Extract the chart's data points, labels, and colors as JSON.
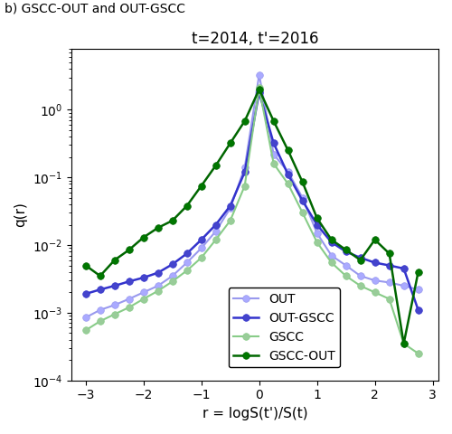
{
  "title": "t=2014, t'=2016",
  "suptitle": "b) GSCC-OUT and OUT-GSCC",
  "xlabel": "r = logS(t')/S(t)",
  "ylabel": "q(r)",
  "series": {
    "OUT": {
      "color": "#9999ee",
      "marker_color": "#aaaaff",
      "linewidth": 1.5,
      "x": [
        -3.0,
        -2.75,
        -2.5,
        -2.25,
        -2.0,
        -1.75,
        -1.5,
        -1.25,
        -1.0,
        -0.75,
        -0.5,
        -0.25,
        0.0,
        0.25,
        0.5,
        0.75,
        1.0,
        1.25,
        1.5,
        1.75,
        2.0,
        2.25,
        2.5,
        2.75
      ],
      "y": [
        0.00085,
        0.0011,
        0.0013,
        0.0016,
        0.002,
        0.0025,
        0.0035,
        0.0055,
        0.009,
        0.016,
        0.035,
        0.14,
        3.3,
        0.22,
        0.12,
        0.05,
        0.015,
        0.007,
        0.005,
        0.0035,
        0.003,
        0.0028,
        0.0025,
        0.0022
      ]
    },
    "OUT-GSCC": {
      "color": "#3333cc",
      "marker_color": "#4444cc",
      "linewidth": 1.8,
      "x": [
        -3.0,
        -2.75,
        -2.5,
        -2.25,
        -2.0,
        -1.75,
        -1.5,
        -1.25,
        -1.0,
        -0.75,
        -0.5,
        -0.25,
        0.0,
        0.25,
        0.5,
        0.75,
        1.0,
        1.25,
        1.5,
        1.75,
        2.0,
        2.25,
        2.5,
        2.75
      ],
      "y": [
        0.0019,
        0.0022,
        0.0025,
        0.0029,
        0.0033,
        0.0039,
        0.0052,
        0.0075,
        0.012,
        0.02,
        0.038,
        0.12,
        1.8,
        0.32,
        0.11,
        0.045,
        0.02,
        0.011,
        0.008,
        0.0065,
        0.0055,
        0.005,
        0.0045,
        0.0011
      ]
    },
    "GSCC": {
      "color": "#88cc88",
      "marker_color": "#99cc99",
      "linewidth": 1.5,
      "x": [
        -3.0,
        -2.75,
        -2.5,
        -2.25,
        -2.0,
        -1.75,
        -1.5,
        -1.25,
        -1.0,
        -0.75,
        -0.5,
        -0.25,
        0.0,
        0.25,
        0.5,
        0.75,
        1.0,
        1.25,
        1.5,
        1.75,
        2.0,
        2.25,
        2.5,
        2.75
      ],
      "y": [
        0.00055,
        0.00075,
        0.00095,
        0.0012,
        0.0016,
        0.0021,
        0.0029,
        0.0042,
        0.0065,
        0.012,
        0.023,
        0.075,
        2.1,
        0.16,
        0.08,
        0.03,
        0.011,
        0.0055,
        0.0035,
        0.0025,
        0.002,
        0.0016,
        0.00035,
        0.00025
      ]
    },
    "GSCC-OUT": {
      "color": "#006600",
      "marker_color": "#007700",
      "linewidth": 1.8,
      "x": [
        -3.0,
        -2.75,
        -2.5,
        -2.25,
        -2.0,
        -1.75,
        -1.5,
        -1.25,
        -1.0,
        -0.75,
        -0.5,
        -0.25,
        0.0,
        0.25,
        0.5,
        0.75,
        1.0,
        1.25,
        1.5,
        1.75,
        2.0,
        2.25,
        2.5,
        2.75
      ],
      "y": [
        0.005,
        0.0035,
        0.006,
        0.0085,
        0.013,
        0.018,
        0.023,
        0.038,
        0.075,
        0.15,
        0.32,
        0.68,
        2.0,
        0.68,
        0.25,
        0.085,
        0.025,
        0.012,
        0.0085,
        0.006,
        0.012,
        0.0075,
        0.00035,
        0.004
      ]
    }
  },
  "legend_order": [
    "OUT",
    "OUT-GSCC",
    "GSCC",
    "GSCC-OUT"
  ]
}
